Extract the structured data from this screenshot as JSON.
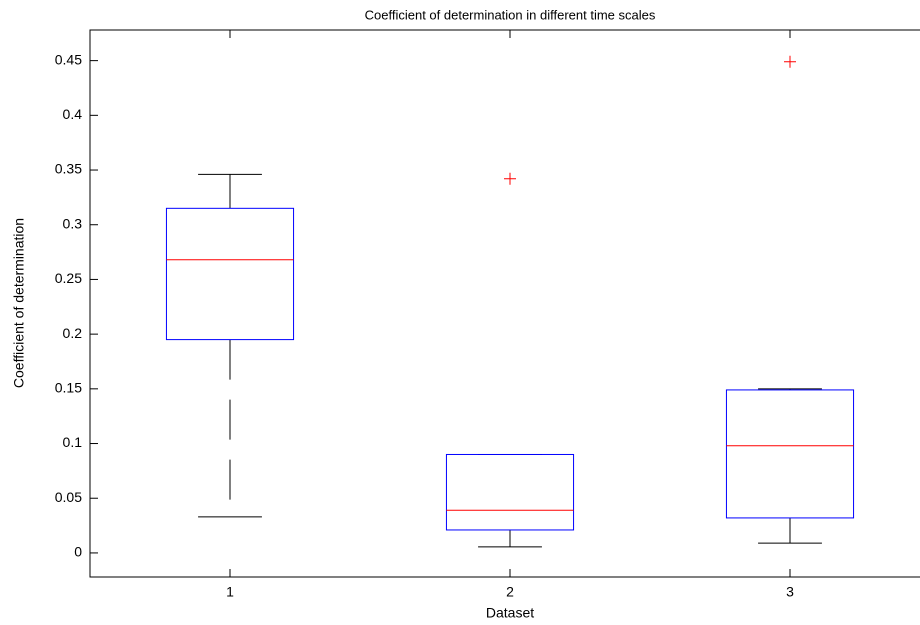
{
  "chart_data": {
    "type": "box",
    "title": "Coefficient of determination in different time scales",
    "x_label": "Dataset",
    "y_label": "Coefficient of determination",
    "categories": [
      "1",
      "2",
      "3"
    ],
    "q1": [
      0.195,
      0.021,
      0.032
    ],
    "median": [
      0.268,
      0.039,
      0.098
    ],
    "q3": [
      0.315,
      0.09,
      0.149
    ],
    "whisker_low": [
      0.033,
      0.0055,
      0.009
    ],
    "whisker_high": [
      0.346,
      0.09,
      0.15
    ],
    "outliers": [
      [],
      [
        0.342
      ],
      [
        0.449
      ]
    ],
    "box_color": "#0000ff",
    "median_color": "#ff0000",
    "whisker_color": "#000000",
    "outlier_color": "#ff0000",
    "xlim": [
      0.5,
      3.5
    ],
    "ylim": [
      -0.022,
      0.478
    ],
    "yticks": [
      0,
      0.05,
      0.1,
      0.15,
      0.2,
      0.25,
      0.3,
      0.35,
      0.4,
      0.45
    ]
  }
}
